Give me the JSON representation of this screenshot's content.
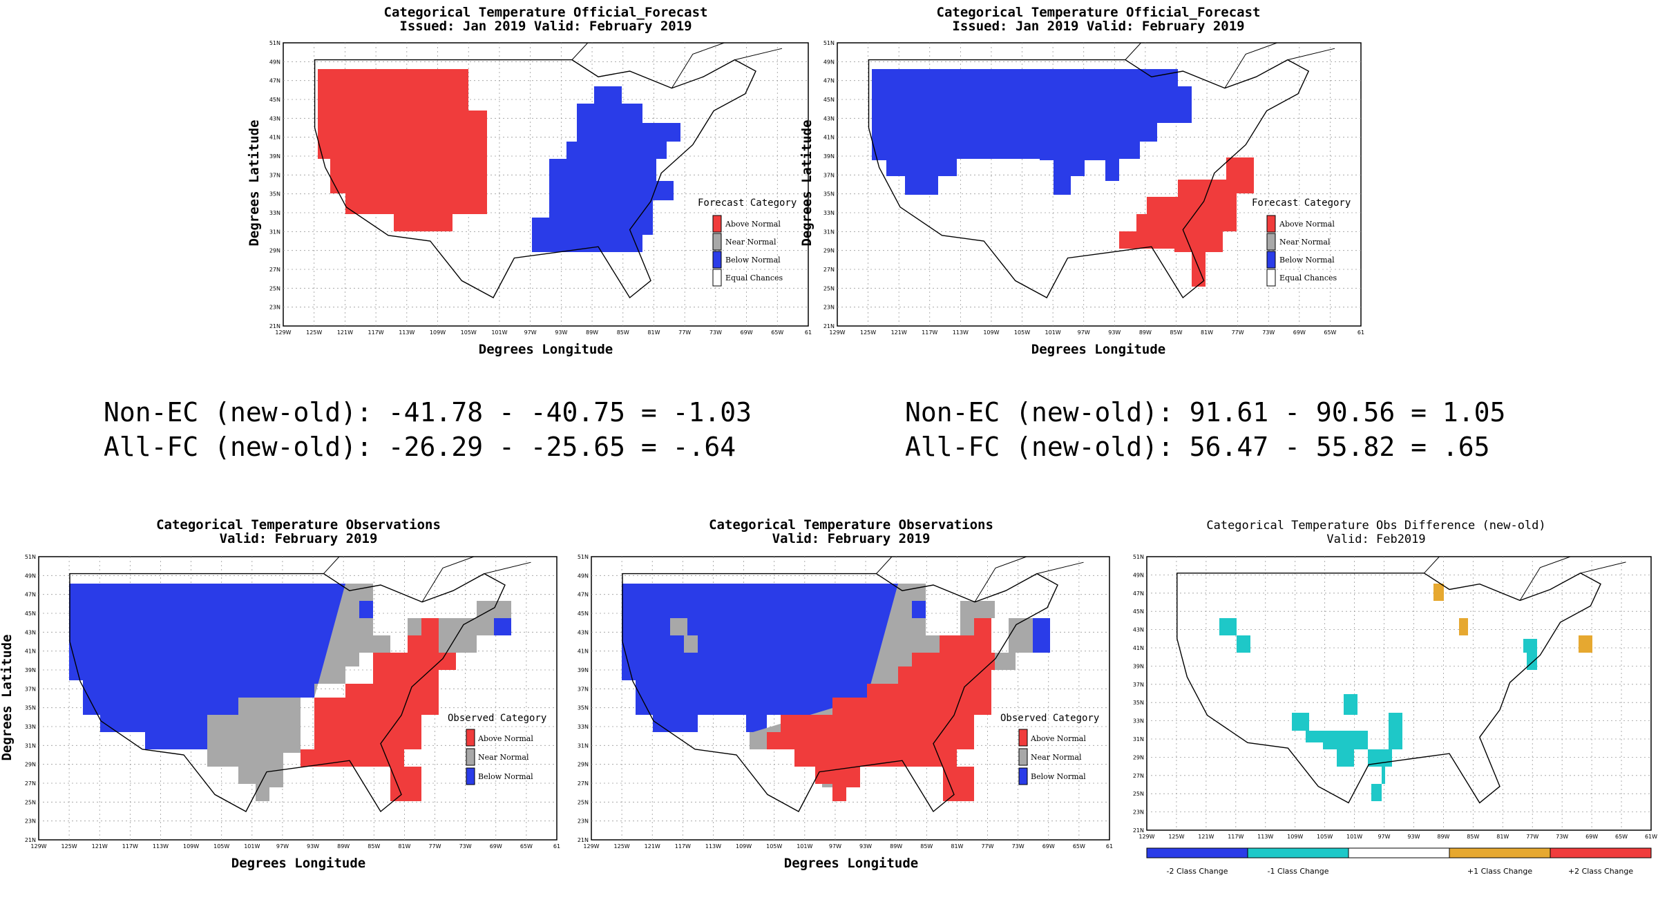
{
  "colors": {
    "above": "#f03c3c",
    "near": "#a8a8a8",
    "below": "#2a3ce8",
    "equal": "#ffffff",
    "minus1": "#1ec8c8",
    "plus1": "#e6a830",
    "plus2": "#f03c3c",
    "minus2": "#2a3ce8"
  },
  "forecast_panels": [
    {
      "title_line1": "Categorical Temperature Official_Forecast",
      "title_line2": "Issued: Jan 2019 Valid: February 2019",
      "xlabel": "Degrees Longitude",
      "ylabel": "Degrees Latitude",
      "legend_title": "Forecast Category",
      "legend_items": [
        "Above Normal",
        "Near Normal",
        "Below Normal",
        "Equal Chances"
      ]
    },
    {
      "title_line1": "Categorical Temperature Official_Forecast",
      "title_line2": "Issued: Jan 2019 Valid: February 2019",
      "xlabel": "Degrees Longitude",
      "ylabel": "Degrees Latitude",
      "legend_title": "Forecast Category",
      "legend_items": [
        "Above Normal",
        "Near Normal",
        "Below Normal",
        "Equal Chances"
      ]
    }
  ],
  "scores": {
    "left": {
      "line1": "Non-EC (new-old): -41.78 - -40.75 = -1.03",
      "line2": "All-FC (new-old): -26.29 - -25.65 = -.64"
    },
    "right": {
      "line1": "Non-EC (new-old): 91.61 - 90.56 = 1.05",
      "line2": "All-FC (new-old): 56.47 - 55.82 = .65"
    }
  },
  "observation_panels": [
    {
      "title_line1": "Categorical Temperature Observations",
      "title_line2": "Valid: February 2019",
      "xlabel": "Degrees Longitude",
      "ylabel": "Degrees Latitude",
      "legend_title": "Observed Category",
      "legend_items": [
        "Above Normal",
        "Near Normal",
        "Below Normal"
      ]
    },
    {
      "title_line1": "Categorical Temperature Observations",
      "title_line2": "Valid: February 2019",
      "xlabel": "Degrees Longitude",
      "ylabel": "",
      "legend_title": "Observed Category",
      "legend_items": [
        "Above Normal",
        "Near Normal",
        "Below Normal"
      ]
    }
  ],
  "difference_panel": {
    "title_line1": "Categorical Temperature Obs Difference (new-old)",
    "title_line2": "Valid: Feb2019",
    "colorbar_labels": [
      "-2 Class Change",
      "-1 Class Change",
      "+1 Class Change",
      "+2 Class Change"
    ]
  },
  "axes": {
    "lat_labels": [
      "51N",
      "49N",
      "47N",
      "45N",
      "43N",
      "41N",
      "39N",
      "37N",
      "35N",
      "33N",
      "31N",
      "29N",
      "27N",
      "25N",
      "23N",
      "21N"
    ],
    "lon_labels": [
      "129W",
      "125W",
      "121W",
      "117W",
      "113W",
      "109W",
      "105W",
      "101W",
      "97W",
      "93W",
      "89W",
      "85W",
      "81W",
      "77W",
      "73W",
      "69W",
      "65W",
      "61"
    ],
    "lon_labels_diff": [
      "129W",
      "125W",
      "121W",
      "117W",
      "113W",
      "109W",
      "105W",
      "101W",
      "97W",
      "93W",
      "89W",
      "85W",
      "81W",
      "77W",
      "73W",
      "69W",
      "65W",
      "61W"
    ]
  }
}
